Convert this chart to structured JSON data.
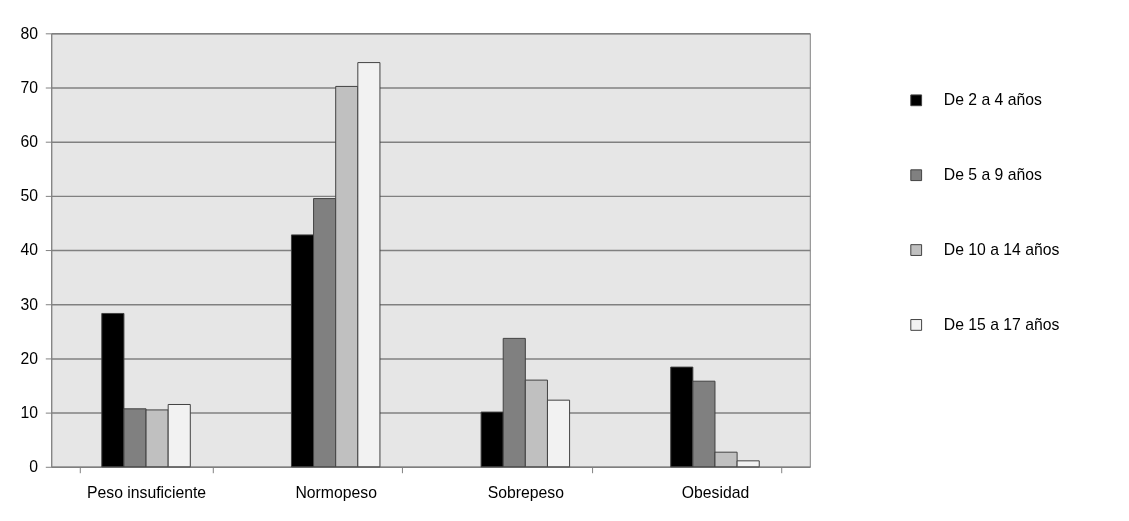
{
  "chart_data": {
    "type": "bar",
    "categories": [
      "Peso insuficiente",
      "Normopeso",
      "Sobrepeso",
      "Obesidad"
    ],
    "series": [
      {
        "name": "De 2 a 4 años",
        "color": "#000000",
        "values": [
          28.3,
          42.8,
          10.1,
          18.4
        ]
      },
      {
        "name": "De 5 a 9 años",
        "color": "#808080",
        "values": [
          10.7,
          49.5,
          23.7,
          15.8
        ]
      },
      {
        "name": "De 10 a 14 años",
        "color": "#c0c0c0",
        "values": [
          10.5,
          70.2,
          16.0,
          2.7
        ]
      },
      {
        "name": "De 15 a 17 años",
        "color": "#f2f2f2",
        "values": [
          11.5,
          74.6,
          12.3,
          1.1
        ]
      }
    ],
    "ylim": [
      0,
      80
    ],
    "yticks": [
      0,
      10,
      20,
      30,
      40,
      50,
      60,
      70,
      80
    ],
    "grid": "y",
    "legend": "right"
  }
}
